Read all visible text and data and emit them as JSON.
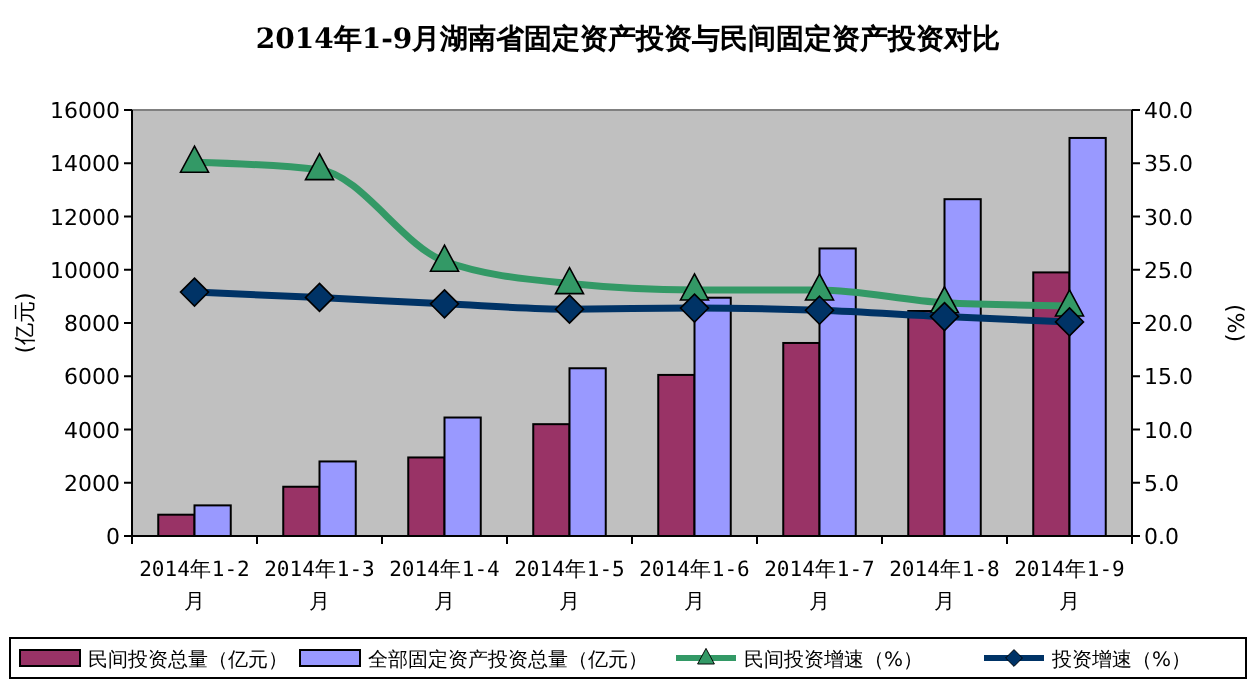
{
  "chart_data": {
    "type": "bar",
    "title": "2014年1-9月湖南省固定资产投资与民间固定资产投资对比",
    "ylabel": "(亿元)",
    "y2label": "(%)",
    "categories": [
      "2014年1-2月",
      "2014年1-3月",
      "2014年1-4月",
      "2014年1-5月",
      "2014年1-6月",
      "2014年1-7月",
      "2014年1-8月",
      "2014年1-9月"
    ],
    "series": [
      {
        "name": "民间投资总量（亿元）",
        "color": "#993366",
        "values": [
          800,
          1850,
          2950,
          4200,
          6050,
          7250,
          8450,
          9900
        ]
      },
      {
        "name": "全部固定资产投资总量（亿元）",
        "color": "#9999ff",
        "values": [
          1150,
          2800,
          4450,
          6300,
          8950,
          10800,
          12650,
          14950
        ]
      },
      {
        "name": "民间投资增速（%）",
        "type": "line",
        "axis": "y2",
        "color": "#339966",
        "marker": "triangle",
        "values": [
          35.1,
          34.4,
          25.8,
          23.7,
          23.1,
          23.1,
          21.9,
          21.6
        ]
      },
      {
        "name": "投资增速（%）",
        "type": "line",
        "axis": "y2",
        "color": "#003366",
        "marker": "diamond",
        "values": [
          22.9,
          22.4,
          21.8,
          21.3,
          21.4,
          21.2,
          20.6,
          20.1
        ]
      }
    ],
    "ylim": [
      0,
      16000
    ],
    "yticks": [
      0,
      2000,
      4000,
      6000,
      8000,
      10000,
      12000,
      14000,
      16000
    ],
    "y2lim": [
      0,
      40
    ],
    "y2ticks": [
      {
        "value": 0,
        "label": "0.0"
      },
      {
        "value": 5,
        "label": "5.0"
      },
      {
        "value": 10,
        "label": "10.0"
      },
      {
        "value": 15,
        "label": "15.0"
      },
      {
        "value": 20,
        "label": "20.0"
      },
      {
        "value": 25,
        "label": "25.0"
      },
      {
        "value": 30,
        "label": "30.0"
      },
      {
        "value": 35,
        "label": "35.0"
      },
      {
        "value": 40,
        "label": "40.0"
      }
    ],
    "legend": "bottom",
    "grid": false
  }
}
